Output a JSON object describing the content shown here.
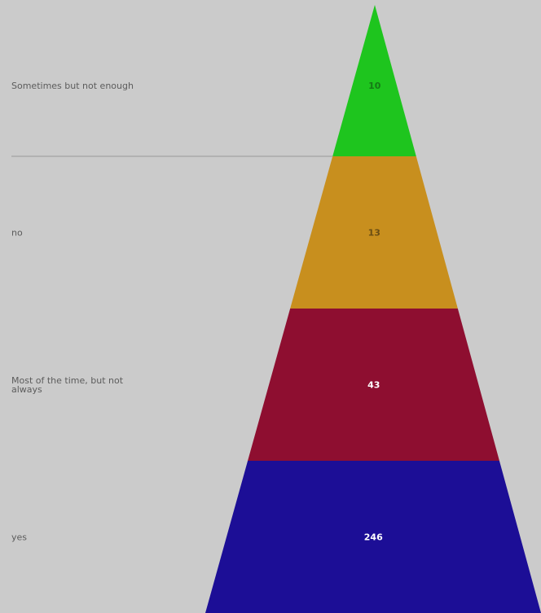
{
  "chart_data": {
    "type": "pyramid",
    "segments": [
      {
        "label": "Sometimes but not enough",
        "value": 10,
        "color": "#1ec51e",
        "value_color": "#157a15"
      },
      {
        "label": "no",
        "value": 13,
        "color": "#c88f1e",
        "value_color": "#6b4e14"
      },
      {
        "label": "Most of the time, but not always",
        "value": 43,
        "color": "#8e0e30",
        "value_color": "#ffffff"
      },
      {
        "label": "yes",
        "value": 246,
        "color": "#1c0e96",
        "value_color": "#ffffff"
      }
    ],
    "background": "#cbcbcb",
    "divider_color": "#9a9a9a"
  }
}
